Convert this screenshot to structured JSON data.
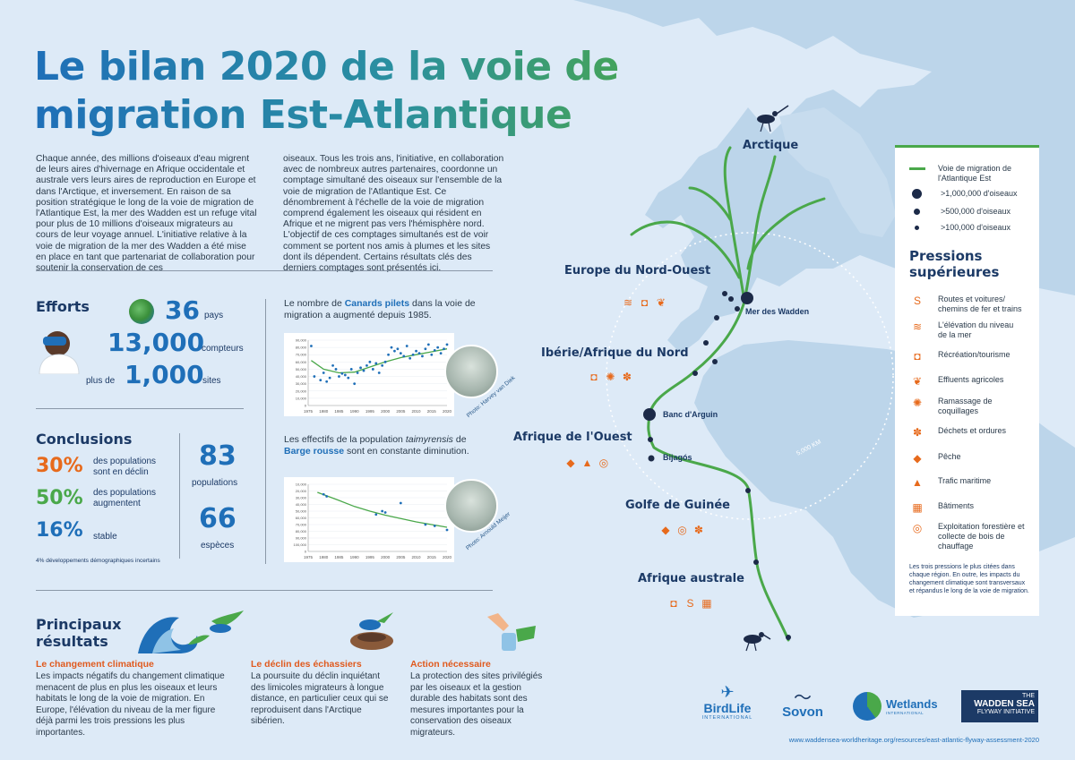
{
  "title_line1": "Le bilan 2020 de la voie de",
  "title_line2": "migration Est-Atlantique",
  "intro_left": "Chaque année, des millions d'oiseaux d'eau migrent de leurs aires d'hivernage en Afrique occidentale et australe vers leurs aires de reproduction en Europe et dans l'Arctique, et inversement. En raison de sa position stratégique le long de la voie de migration de l'Atlantique Est, la mer des Wadden est un refuge vital pour plus de 10 millions d'oiseaux migrateurs au cours de leur voyage annuel. L'initiative relative à la voie de migration de la mer des Wadden a été mise en place en tant que partenariat de collaboration pour soutenir la conservation de ces",
  "intro_right": "oiseaux. Tous les trois ans, l'initiative, en collaboration avec de nombreux autres partenaires, coordonne un comptage simultané des oiseaux sur l'ensemble de la voie de migration de l'Atlantique Est. Ce dénombrement à l'échelle de la voie de migration comprend également les oiseaux qui résident en Afrique et ne migrent pas vers l'hémisphère nord. L'objectif de ces comptages simultanés est de voir comment se portent nos amis à plumes et les sites dont ils dépendent. Certains résultats clés des derniers comptages sont présentés ici.",
  "efforts": {
    "heading": "Efforts",
    "countries_value": "36",
    "countries_label": "pays",
    "counters_value": "13,000",
    "counters_label": "compteurs",
    "sites_prefix": "plus de",
    "sites_value": "1,000",
    "sites_label": "sites"
  },
  "conclusions": {
    "heading": "Conclusions",
    "items": [
      {
        "pct": "30%",
        "label": "des populations sont en déclin",
        "color": "#e76a1c"
      },
      {
        "pct": "50%",
        "label": "des populations augmentent",
        "color": "#4aa84a"
      },
      {
        "pct": "16%",
        "label": "stable",
        "color": "#1f6fb8"
      }
    ],
    "populations_value": "83",
    "populations_label": "populations",
    "species_value": "66",
    "species_label": "espèces",
    "footnote": "4% développements démographiques incertains"
  },
  "chart1": {
    "caption_pre": "Le nombre de ",
    "caption_bold": "Canards pilets",
    "caption_post": " dans la voie de migration a augmenté depuis 1985.",
    "photo_credit": "Photo: Harvey van Diek"
  },
  "chart2": {
    "caption_pre": "Les effectifs de la population ",
    "caption_italic": "taimyrensis",
    "caption_mid": " de ",
    "caption_bold": "Barge rousse",
    "caption_post": " sont en constante diminution.",
    "photo_credit": "Photo: Arnould Meijer"
  },
  "chart_data": [
    {
      "type": "scatter",
      "title": "",
      "x_ticks": [
        "1975",
        "1980",
        "1985",
        "1990",
        "1995",
        "2000",
        "2005",
        "2010",
        "2015",
        "2020"
      ],
      "y_ticks": [
        "0",
        "10,000",
        "20,000",
        "30,000",
        "40,000",
        "50,000",
        "60,000",
        "70,000",
        "80,000",
        "90,000"
      ],
      "xlim": [
        1975,
        2020
      ],
      "ylim": [
        0,
        90000
      ],
      "points": [
        [
          1976,
          82000
        ],
        [
          1977,
          40000
        ],
        [
          1979,
          35000
        ],
        [
          1980,
          45000
        ],
        [
          1981,
          33000
        ],
        [
          1982,
          38000
        ],
        [
          1983,
          55000
        ],
        [
          1984,
          50000
        ],
        [
          1985,
          40000
        ],
        [
          1986,
          44000
        ],
        [
          1987,
          42000
        ],
        [
          1988,
          38000
        ],
        [
          1989,
          50000
        ],
        [
          1990,
          30000
        ],
        [
          1991,
          45000
        ],
        [
          1992,
          52000
        ],
        [
          1993,
          48000
        ],
        [
          1994,
          55000
        ],
        [
          1995,
          60000
        ],
        [
          1996,
          50000
        ],
        [
          1997,
          58000
        ],
        [
          1998,
          45000
        ],
        [
          1999,
          55000
        ],
        [
          2000,
          60000
        ],
        [
          2001,
          70000
        ],
        [
          2002,
          80000
        ],
        [
          2003,
          75000
        ],
        [
          2004,
          78000
        ],
        [
          2005,
          72000
        ],
        [
          2006,
          68000
        ],
        [
          2007,
          82000
        ],
        [
          2008,
          65000
        ],
        [
          2009,
          70000
        ],
        [
          2010,
          75000
        ],
        [
          2011,
          72000
        ],
        [
          2012,
          68000
        ],
        [
          2013,
          78000
        ],
        [
          2014,
          84000
        ],
        [
          2015,
          70000
        ],
        [
          2016,
          76000
        ],
        [
          2017,
          80000
        ],
        [
          2018,
          72000
        ],
        [
          2019,
          78000
        ],
        [
          2020,
          84000
        ]
      ],
      "trend": [
        [
          1976,
          62000
        ],
        [
          1980,
          50000
        ],
        [
          1985,
          45000
        ],
        [
          1990,
          46000
        ],
        [
          1995,
          53000
        ],
        [
          2000,
          60000
        ],
        [
          2005,
          66000
        ],
        [
          2010,
          70000
        ],
        [
          2015,
          74000
        ],
        [
          2020,
          78000
        ]
      ]
    },
    {
      "type": "scatter",
      "title": "",
      "x_ticks": [
        "1975",
        "1980",
        "1985",
        "1990",
        "1995",
        "2000",
        "2005",
        "2010",
        "2015",
        "2020"
      ],
      "y_ticks": [
        "0",
        "100,000",
        "90,000",
        "80,000",
        "70,000",
        "60,000",
        "50,000",
        "40,000",
        "30,000",
        "20,000",
        "10,000"
      ],
      "xlim": [
        1975,
        2020
      ],
      "ylim": [
        0,
        100000
      ],
      "points": [
        [
          1980,
          85000
        ],
        [
          1981,
          82000
        ],
        [
          1997,
          55000
        ],
        [
          1999,
          60000
        ],
        [
          2000,
          58000
        ],
        [
          2005,
          72000
        ],
        [
          2013,
          40000
        ],
        [
          2016,
          38000
        ],
        [
          2020,
          32000
        ]
      ],
      "trend": [
        [
          1978,
          88000
        ],
        [
          1985,
          76000
        ],
        [
          1990,
          67000
        ],
        [
          1995,
          60000
        ],
        [
          2000,
          54000
        ],
        [
          2005,
          49000
        ],
        [
          2010,
          44000
        ],
        [
          2015,
          40000
        ],
        [
          2020,
          36000
        ]
      ]
    }
  ],
  "results": {
    "heading_line1": "Principaux",
    "heading_line2": "résultats",
    "col1_title": "Le changement climatique",
    "col1_text": "Les impacts négatifs du changement climatique menacent de plus en plus les oiseaux et leurs habitats le long de la voie de migration. En Europe, l'élévation du niveau de la mer figure déjà parmi les trois pressions les plus importantes.",
    "col2_title": "Le déclin des échassiers",
    "col2_text": "La poursuite du déclin inquiétant des limicoles migrateurs à longue distance, en particulier ceux qui se reproduisent dans l'Arctique sibérien.",
    "col3_title": "Action nécessaire",
    "col3_text": "La protection des sites privilégiés par les oiseaux et la gestion durable des habitats sont des mesures importantes pour la conservation des oiseaux migrateurs."
  },
  "map": {
    "regions": [
      "Arctique",
      "Europe du Nord-Ouest",
      "Ibérie/Afrique du Nord",
      "Afrique de l'Ouest",
      "Golfe de Guinée",
      "Afrique australe"
    ],
    "sites": [
      "Mer des Wadden",
      "Banc d'Arguin",
      "Bijagós"
    ],
    "distance": "5,000 KM"
  },
  "legend": {
    "flyway": "Voie de migration de l'Atlantique Est",
    "big": ">1,000,000 d'oiseaux",
    "mid": ">500,000 d'oiseaux",
    "small": ">100,000 d'oiseaux",
    "pressures_title_1": "Pressions",
    "pressures_title_2": "supérieures",
    "pressures": [
      {
        "icon": "road-icon",
        "label": "Routes et voitures/ chemins de fer et trains"
      },
      {
        "icon": "sea-level-icon",
        "label": "L'élévation du niveau de la mer"
      },
      {
        "icon": "camera-icon",
        "label": "Récréation/tourisme"
      },
      {
        "icon": "plant-icon",
        "label": "Effluents agricoles"
      },
      {
        "icon": "shell-icon",
        "label": "Ramassage de coquillages"
      },
      {
        "icon": "waste-icon",
        "label": "Déchets et ordures"
      },
      {
        "icon": "fish-icon",
        "label": "Pêche"
      },
      {
        "icon": "ship-icon",
        "label": "Trafic maritime"
      },
      {
        "icon": "building-icon",
        "label": "Bâtiments"
      },
      {
        "icon": "wood-icon",
        "label": "Exploitation forestière et collecte de bois de chauffage"
      }
    ],
    "note": "Les trois pressions le plus citées dans chaque région. En outre, les impacts du changement climatique sont transversaux et répandus le long de la voie de migration."
  },
  "logos": {
    "birdlife": "BirdLife",
    "birdlife_sub": "INTERNATIONAL",
    "sovon": "Sovon",
    "wetlands": "Wetlands",
    "wetlands_sub": "INTERNATIONAL",
    "wsfi_1": "THE",
    "wsfi_2": "WADDEN SEA",
    "wsfi_3": "FLYWAY INITIATIVE"
  },
  "url": "www.waddensea-worldheritage.org/resources/east-atlantic-flyway-assessment-2020"
}
